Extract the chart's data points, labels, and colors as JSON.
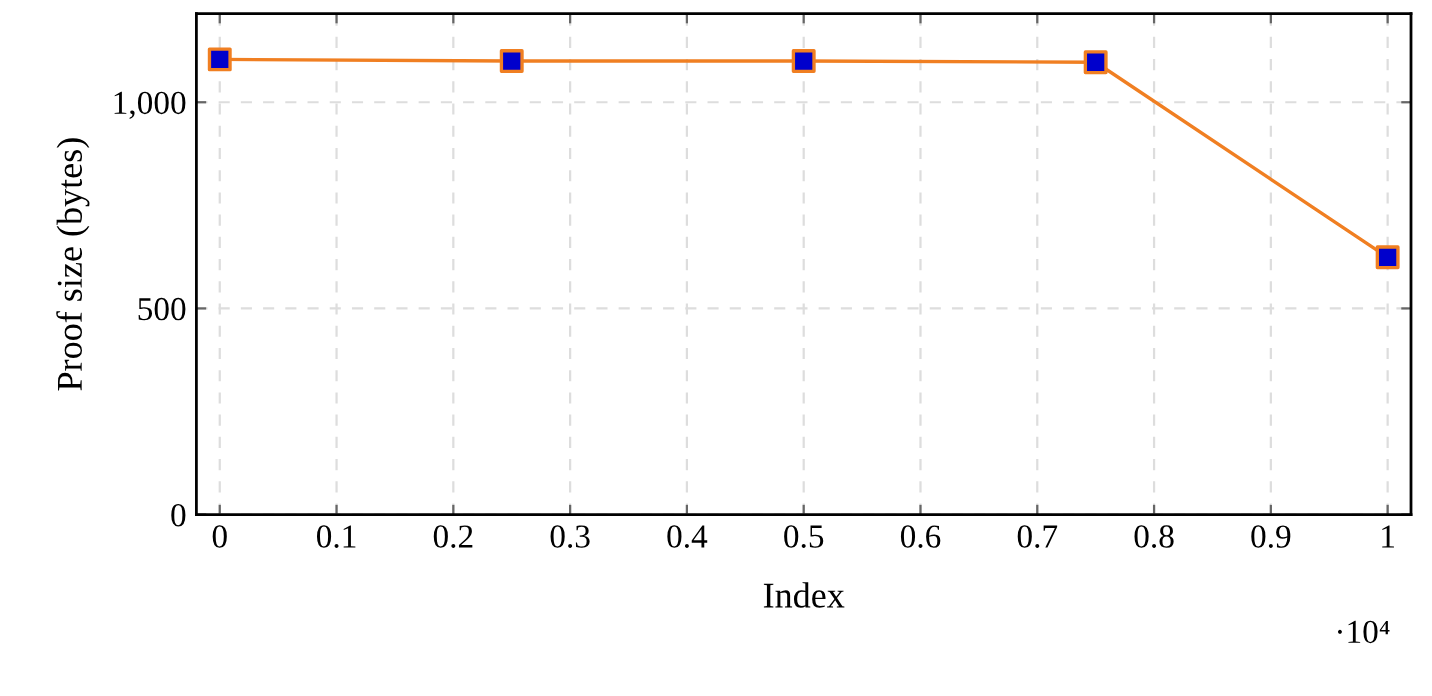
{
  "chart_data": {
    "type": "line",
    "xlabel": "Index",
    "ylabel": "Proof size (bytes)",
    "x": [
      0,
      0.25,
      0.5,
      0.75,
      1
    ],
    "series": [
      {
        "color": "#f07f22",
        "colors": [
          "#0000cc",
          "#0000cc",
          "#0000cc",
          "#0000cc",
          "#0000cc"
        ],
        "values": [
          1104,
          1100,
          1100,
          1097,
          624
        ]
      }
    ],
    "xlim": [
      -0.02,
      1.02
    ],
    "ylim": [
      0,
      1215
    ],
    "xticks": [
      0,
      0.1,
      0.2,
      0.3,
      0.4,
      0.5,
      0.6,
      0.7,
      0.8,
      0.9,
      1
    ],
    "yticks": [
      0,
      500,
      {
        "value": 1000,
        "label": "1,000"
      }
    ],
    "annotations": [
      "·10⁴"
    ],
    "grid": true,
    "marker": "square",
    "line_style": "solid"
  }
}
